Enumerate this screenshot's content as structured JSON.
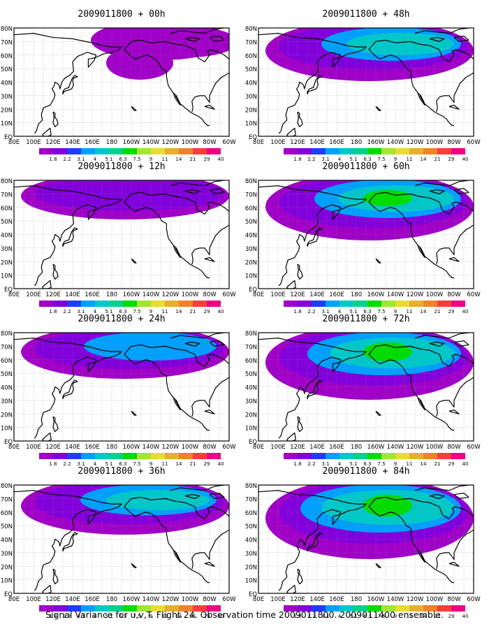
{
  "panels": [
    {
      "title": "2009011800 + 00h",
      "level": 0,
      "blob": null
    },
    {
      "title": "2009011800 + 48h",
      "level": 3,
      "blob": null
    },
    {
      "title": "2009011800 + 12h",
      "level": 1,
      "blob": null
    },
    {
      "title": "2009011800 + 60h",
      "level": 4,
      "blob": null
    },
    {
      "title": "2009011800 + 24h",
      "level": 2,
      "blob": null
    },
    {
      "title": "2009011800 + 72h",
      "level": 5,
      "blob": null
    },
    {
      "title": "2009011800 + 36h",
      "level": 2.5,
      "blob": null
    },
    {
      "title": "2009011800 + 84h",
      "level": 6,
      "blob": null
    }
  ],
  "map": {
    "lon_labels": [
      "80E",
      "100E",
      "120E",
      "140E",
      "160E",
      "180",
      "160W",
      "140W",
      "120W",
      "100W",
      "80W",
      "60W"
    ],
    "lat_labels": [
      "EQ",
      "10N",
      "20N",
      "30N",
      "40N",
      "50N",
      "60N",
      "70N",
      "80N"
    ],
    "lon_range": [
      80,
      300
    ],
    "lat_range": [
      0,
      80
    ]
  },
  "colorbar": {
    "labels": [
      "1.8",
      "2.2",
      "3.1",
      "4",
      "5.1",
      "6.3",
      "7.5",
      "9",
      "11",
      "14",
      "21",
      "29",
      "40"
    ],
    "colors": [
      "#a000c8",
      "#8200dc",
      "#1e3cff",
      "#00a0ff",
      "#00c8c8",
      "#00d28c",
      "#00dc00",
      "#a0e632",
      "#e6dc32",
      "#e6af2d",
      "#f08228",
      "#fa3c3c",
      "#f00082"
    ]
  },
  "footer": "Signal Variance for u,v,T. Flight 24. Observation time 2009011800. 2009011400 ensemble."
}
